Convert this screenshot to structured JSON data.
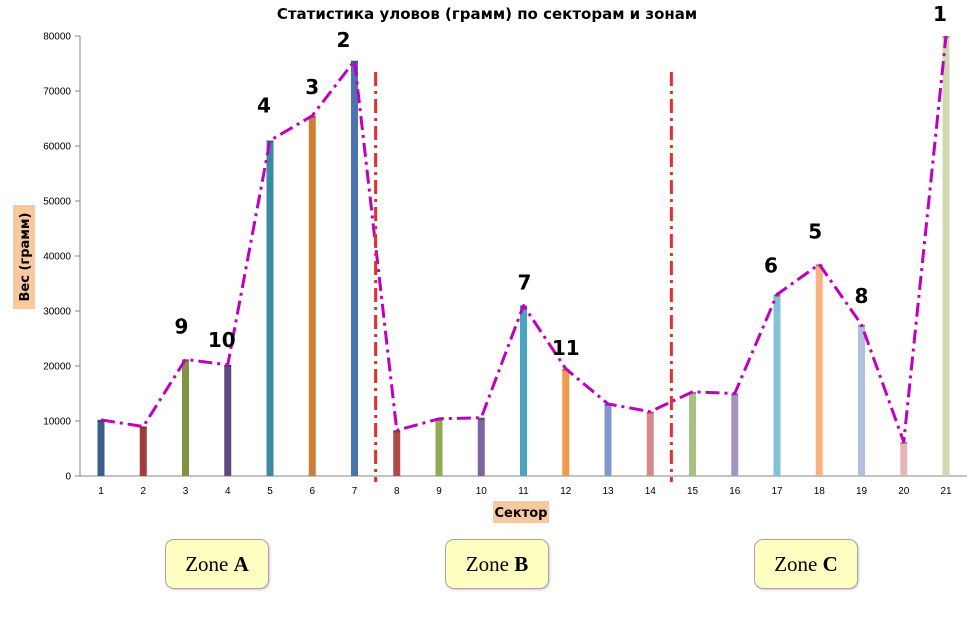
{
  "chart_data": {
    "type": "bar",
    "title": "Статистика уловов (грамм) по секторам и зонам",
    "xlabel": "Сектор",
    "ylabel": "Вес (грамм)",
    "ylim": [
      0,
      80000
    ],
    "yticks": [
      "0",
      "10000",
      "20000",
      "30000",
      "40000",
      "50000",
      "60000",
      "70000",
      "80000"
    ],
    "categories": [
      "1",
      "2",
      "3",
      "4",
      "5",
      "6",
      "7",
      "8",
      "9",
      "10",
      "11",
      "12",
      "13",
      "14",
      "15",
      "16",
      "17",
      "18",
      "19",
      "20",
      "21"
    ],
    "values": [
      10200,
      9000,
      21200,
      20200,
      61000,
      65500,
      75500,
      8300,
      10400,
      10600,
      31000,
      19500,
      13100,
      11700,
      15300,
      15000,
      33000,
      38500,
      27500,
      6200,
      80000
    ],
    "rank_labels": [
      {
        "sector": "3",
        "label": "9"
      },
      {
        "sector": "4",
        "label": "10"
      },
      {
        "sector": "5",
        "label": "4"
      },
      {
        "sector": "6",
        "label": "3"
      },
      {
        "sector": "7",
        "label": "2"
      },
      {
        "sector": "11",
        "label": "7"
      },
      {
        "sector": "12",
        "label": "11"
      },
      {
        "sector": "17",
        "label": "6"
      },
      {
        "sector": "18",
        "label": "5"
      },
      {
        "sector": "19",
        "label": "8"
      },
      {
        "sector": "21",
        "label": "1"
      }
    ],
    "bar_colors": [
      "#3a5f8c",
      "#a23b3b",
      "#7f9342",
      "#5f4a80",
      "#3b8aa0",
      "#cf7d37",
      "#4a73b0",
      "#b04a4a",
      "#8faa52",
      "#7a65a0",
      "#4aa3c0",
      "#ef9a4a",
      "#7f99cc",
      "#d48a8a",
      "#a8c082",
      "#a593c0",
      "#84c0d6",
      "#f7b27e",
      "#b0c0dd",
      "#e6b8b5",
      "#cfd9b2"
    ],
    "trend_line_color": "#c000c0",
    "zone_separator_color": "#e03030",
    "zones": [
      {
        "label": "Zone ",
        "letter": "A"
      },
      {
        "label": "Zone ",
        "letter": "B"
      },
      {
        "label": "Zone ",
        "letter": "C"
      }
    ]
  }
}
